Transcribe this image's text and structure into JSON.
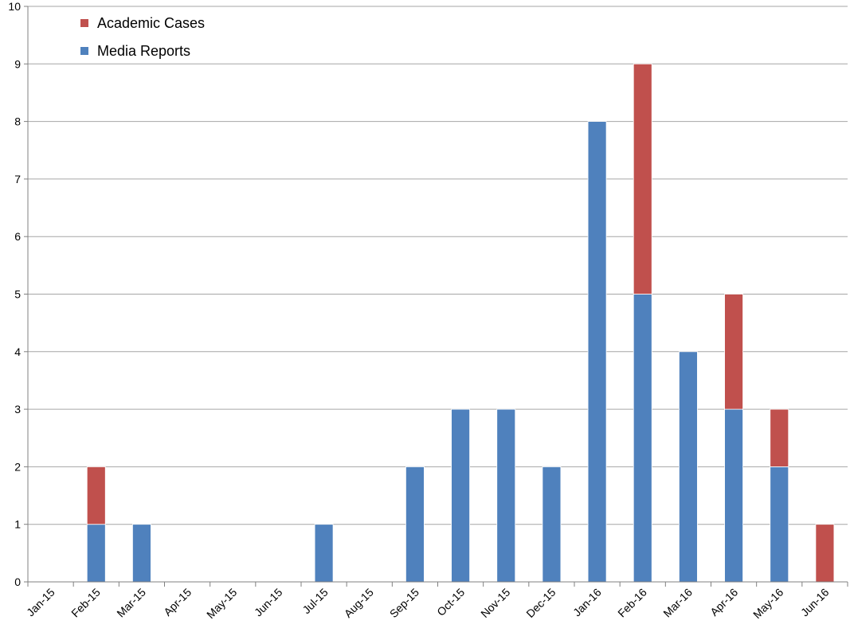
{
  "chart_data": {
    "type": "bar",
    "stacked": true,
    "categories": [
      "Jan-15",
      "Feb-15",
      "Mar-15",
      "Apr-15",
      "May-15",
      "Jun-15",
      "Jul-15",
      "Aug-15",
      "Sep-15",
      "Oct-15",
      "Nov-15",
      "Dec-15",
      "Jan-16",
      "Feb-16",
      "Mar-16",
      "Apr-16",
      "May-16",
      "Jun-16"
    ],
    "series": [
      {
        "name": "Media Reports",
        "color": "#4f81bd",
        "values": [
          0,
          1,
          1,
          0,
          0,
          0,
          1,
          0,
          2,
          3,
          3,
          2,
          8,
          5,
          4,
          3,
          2,
          0
        ]
      },
      {
        "name": "Academic Cases",
        "color": "#c0504d",
        "values": [
          0,
          1,
          0,
          0,
          0,
          0,
          0,
          0,
          0,
          0,
          0,
          0,
          0,
          4,
          0,
          2,
          1,
          1
        ]
      }
    ],
    "legend_order": [
      "Academic Cases",
      "Media Reports"
    ],
    "legend_position": "top-left",
    "ylim": [
      0,
      10
    ],
    "yticks": [
      0,
      1,
      2,
      3,
      4,
      5,
      6,
      7,
      8,
      9,
      10
    ],
    "grid": true,
    "title": "",
    "xlabel": "",
    "ylabel": ""
  }
}
